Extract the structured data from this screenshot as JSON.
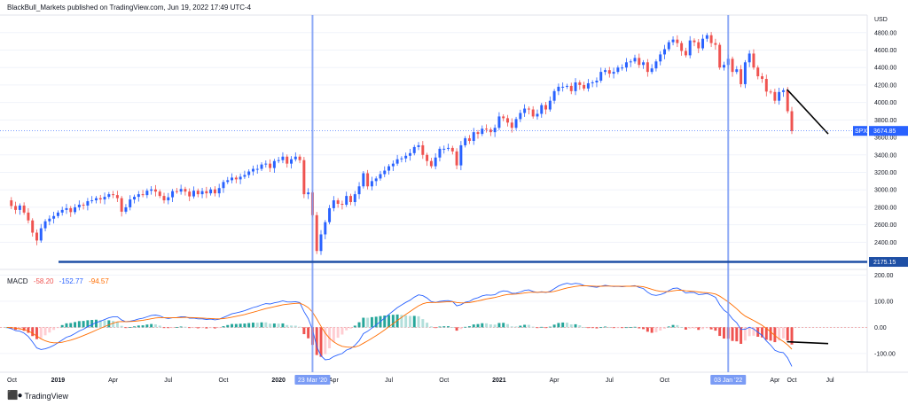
{
  "attribution": "BlackBull_Markets published on TradingView.com, Jun 19, 2022 17:49 UTC-4",
  "brand": "TradingView",
  "brand_icon": "tradingview-logo-icon",
  "colors": {
    "up": "#2962ff",
    "down": "#ef5350",
    "hist_up_strong": "#26a69a",
    "hist_up_weak": "#b2dfdb",
    "hist_down_strong": "#ef5350",
    "hist_down_weak": "#ffcdd2",
    "macd_line": "#2962ff",
    "signal_line": "#ff6d00",
    "vline": "#7b9cf5",
    "hline": "#1e4fa5",
    "trendline": "#000000",
    "price_tag": "#2962ff"
  },
  "chart_data": [
    {
      "type": "candlestick",
      "symbol": "SPX",
      "currency": "USD",
      "current_price": "3674.85",
      "ylim": [
        2150,
        4950
      ],
      "y_ticks": [
        "4800.00",
        "4600.00",
        "4400.00",
        "4200.00",
        "4000.00",
        "3800.00",
        "3600.00",
        "3400.00",
        "3200.00",
        "3000.00",
        "2800.00",
        "2600.00",
        "2400.00"
      ],
      "x_ticks": [
        "Oct",
        "2019",
        "Apr",
        "Jul",
        "Oct",
        "2020",
        "Apr",
        "Jul",
        "Oct",
        "2021",
        "Apr",
        "Jul",
        "Oct",
        "Apr",
        "Jul",
        "Oct"
      ],
      "x_ticks_bold": [
        "2019",
        "2020",
        "2021"
      ],
      "x_tick_highlights": [
        "23 Mar '20",
        "03 Jan '22"
      ],
      "horizontal_line": {
        "value": 2175.15,
        "label": "2175.15"
      },
      "vertical_markers": [
        "23 Mar '20",
        "03 Jan '22"
      ],
      "trendline": {
        "from": {
          "date": "2022-04-10",
          "value": 4150
        },
        "to": {
          "date": "2022-06-17",
          "value": 3640
        }
      },
      "weekly_close": [
        2880,
        2815,
        2770,
        2820,
        2740,
        2650,
        2510,
        2420,
        2560,
        2640,
        2670,
        2700,
        2740,
        2770,
        2790,
        2745,
        2800,
        2830,
        2820,
        2870,
        2880,
        2905,
        2890,
        2920,
        2950,
        2940,
        2905,
        2750,
        2800,
        2890,
        2920,
        2950,
        2940,
        2990,
        3005,
        2980,
        2930,
        2880,
        2915,
        2985,
        2980,
        3010,
        2980,
        2925,
        2990,
        2950,
        2985,
        2960,
        3005,
        2960,
        3020,
        3090,
        3110,
        3140,
        3120,
        3150,
        3170,
        3210,
        3240,
        3240,
        3290,
        3300,
        3250,
        3330,
        3340,
        3380,
        3300,
        3350,
        3380,
        3340,
        2950,
        2970,
        2710,
        2300,
        2490,
        2630,
        2790,
        2880,
        2840,
        2830,
        2930,
        2860,
        2950,
        3040,
        3190,
        3040,
        3100,
        3130,
        3180,
        3220,
        3270,
        3300,
        3350,
        3360,
        3390,
        3420,
        3490,
        3510,
        3400,
        3330,
        3270,
        3370,
        3470,
        3470,
        3480,
        3440,
        3280,
        3510,
        3590,
        3560,
        3660,
        3640,
        3700,
        3690,
        3660,
        3710,
        3840,
        3820,
        3770,
        3710,
        3810,
        3880,
        3930,
        3920,
        3840,
        3870,
        3970,
        3920,
        4020,
        4130,
        4180,
        4180,
        4190,
        4130,
        4230,
        4200,
        4160,
        4220,
        4230,
        4250,
        4350,
        4370,
        4330,
        4350,
        4400,
        4400,
        4460,
        4470,
        4510,
        4430,
        4460,
        4350,
        4390,
        4470,
        4550,
        4610,
        4690,
        4720,
        4680,
        4590,
        4540,
        4710,
        4690,
        4620,
        4730,
        4770,
        4680,
        4660,
        4400,
        4430,
        4500,
        4350,
        4380,
        4210,
        4460,
        4560,
        4400,
        4300,
        4270,
        4125,
        4120,
        4020,
        4120,
        4140,
        3900,
        3674
      ]
    },
    {
      "type": "macd",
      "legend_label": "MACD",
      "values": {
        "histogram": "-58.20",
        "macd": "-152.77",
        "signal": "-94.57"
      },
      "ylim": [
        -165,
        215
      ],
      "y_ticks": [
        "200.00",
        "100.00",
        "0.00",
        "-100.00"
      ],
      "trendline": {
        "from": {
          "date": "2022-04-10",
          "value": -55
        },
        "to": {
          "date": "2022-06-17",
          "value": -62
        }
      }
    }
  ]
}
